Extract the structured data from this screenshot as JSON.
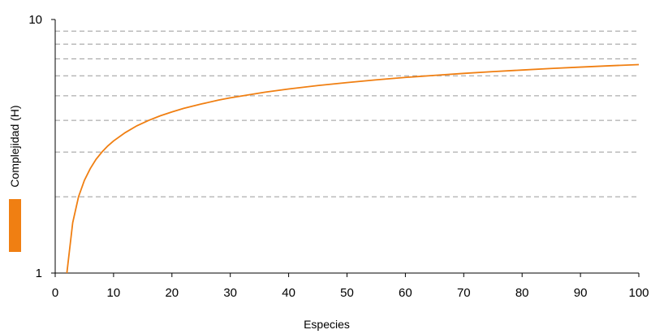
{
  "chart_data": {
    "type": "line",
    "title": "",
    "xlabel": "Especies",
    "ylabel": "Complejidad (H)",
    "xlim": [
      0,
      100
    ],
    "ylim": [
      1,
      10
    ],
    "yscale": "log",
    "grid": "horizontal dashed at y minor ticks",
    "legend": "left, color swatch only",
    "x_ticks": [
      "0",
      "10",
      "20",
      "30",
      "40",
      "50",
      "60",
      "70",
      "80",
      "90",
      "100"
    ],
    "y_ticks": [
      "1",
      "10"
    ],
    "y_minor_ticks": [
      2,
      3,
      4,
      5,
      6,
      7,
      8,
      9
    ],
    "series": [
      {
        "color": "#f07f12",
        "x": [
          2,
          3,
          4,
          5,
          6,
          7,
          8,
          9,
          10,
          12,
          14,
          16,
          18,
          20,
          22,
          25,
          28,
          30,
          33,
          36,
          40,
          45,
          50,
          55,
          60,
          65,
          70,
          75,
          80,
          85,
          90,
          95,
          100
        ],
        "y": [
          1.0,
          1.58,
          2.0,
          2.32,
          2.58,
          2.81,
          3.0,
          3.17,
          3.32,
          3.58,
          3.81,
          4.0,
          4.17,
          4.32,
          4.46,
          4.64,
          4.81,
          4.91,
          5.04,
          5.17,
          5.32,
          5.49,
          5.64,
          5.78,
          5.91,
          6.02,
          6.13,
          6.23,
          6.32,
          6.41,
          6.49,
          6.57,
          6.64
        ]
      }
    ]
  }
}
